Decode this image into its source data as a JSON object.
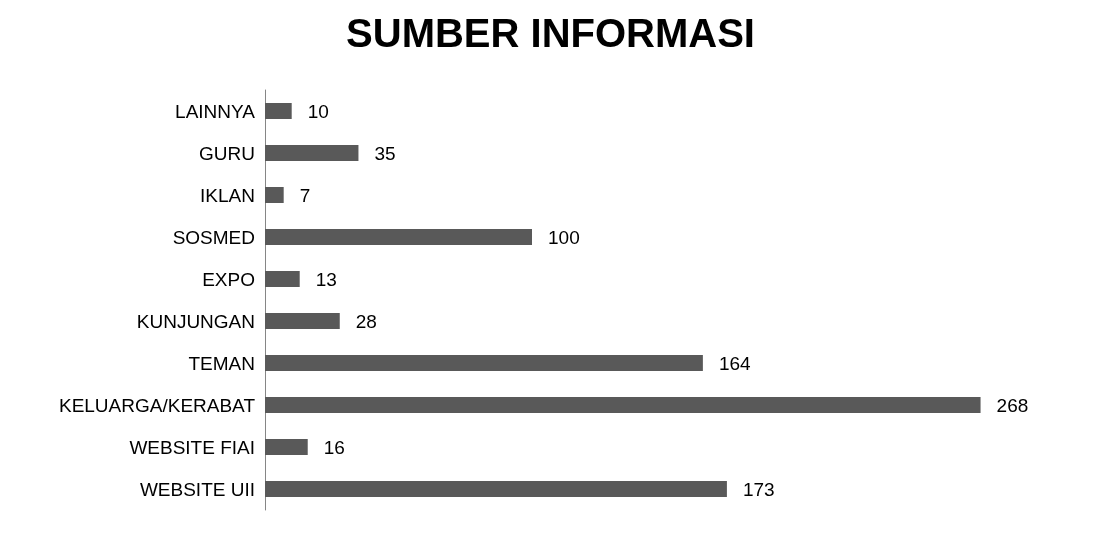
{
  "chart_data": {
    "type": "bar",
    "orientation": "horizontal",
    "title": "SUMBER INFORMASI",
    "categories": [
      "LAINNYA",
      "GURU",
      "IKLAN",
      "SOSMED",
      "EXPO",
      "KUNJUNGAN",
      "TEMAN",
      "KELUARGA/KERABAT",
      "WEBSITE FIAI",
      "WEBSITE UII"
    ],
    "values": [
      10,
      35,
      7,
      100,
      13,
      28,
      164,
      268,
      16,
      173
    ],
    "color": "#595959",
    "data_labels": true
  }
}
